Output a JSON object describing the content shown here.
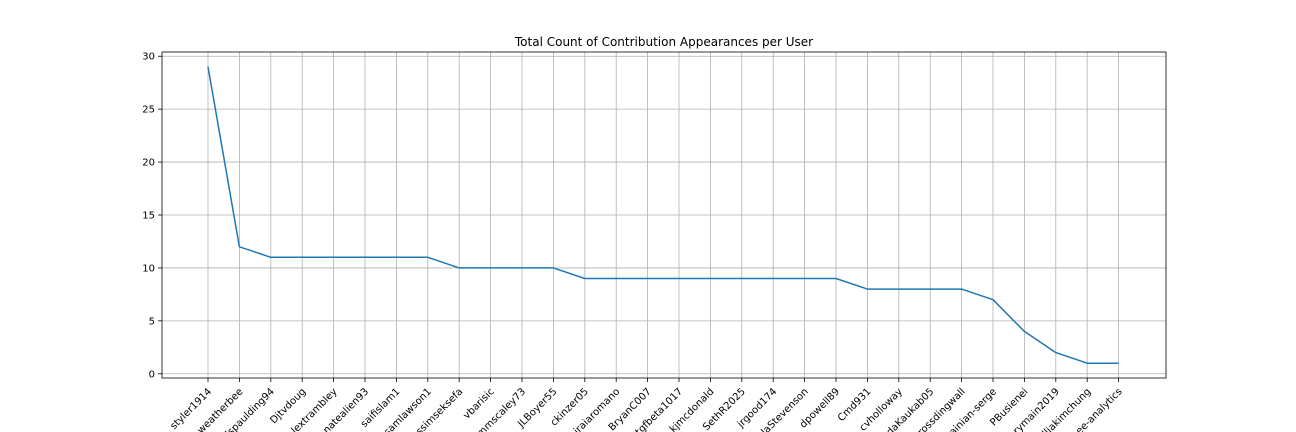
{
  "chart_data": {
    "type": "line",
    "title": "Total Count of Contribution Appearances per User",
    "xlabel": "",
    "ylabel": "",
    "categories": [
      "styler1914",
      "weatherbee",
      "dspaulding94",
      "Djtvdoug",
      "alextrambley",
      "natealien93",
      "saifislam1",
      "samlawson1",
      "ssimseksefa",
      "vbarisic",
      "mmscaley73",
      "JLBoyer55",
      "ckinzer05",
      "iraiaromano",
      "BryanC007",
      "tgfbeta1017",
      "kjmcdonald",
      "SethR2025",
      "jrgood174",
      "laStevenson",
      "dpowell89",
      "Cmd931",
      "cvholloway",
      "daKaukab05",
      "rossdingwall",
      "ainian-serge",
      "PBusienei",
      "rymain2019",
      "lliakimchung",
      "ee-analytics"
    ],
    "values": [
      29,
      12,
      11,
      11,
      11,
      11,
      11,
      11,
      10,
      10,
      10,
      10,
      9,
      9,
      9,
      9,
      9,
      9,
      9,
      9,
      9,
      8,
      8,
      8,
      8,
      7,
      4,
      2,
      1,
      1
    ],
    "yticks": [
      0,
      5,
      10,
      15,
      20,
      25,
      30
    ],
    "ylim": [
      -0.4,
      30.4
    ],
    "grid": true,
    "line_color": "#1f77b4"
  }
}
